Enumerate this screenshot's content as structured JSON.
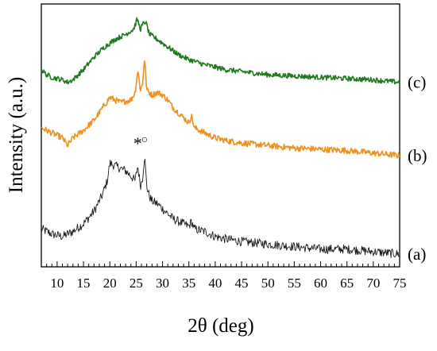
{
  "chart_data": {
    "type": "line",
    "title": "",
    "xlabel": "2θ (deg)",
    "ylabel": "Intensity (a.u.)",
    "xlim": [
      7,
      75
    ],
    "x_ticks": [
      10,
      15,
      20,
      25,
      30,
      35,
      40,
      45,
      50,
      55,
      60,
      65,
      70,
      75
    ],
    "y_ticks": [],
    "grid": false,
    "legend": "none",
    "series": [
      {
        "label": "(a)",
        "color": "#1a1a1a",
        "noise": 0.018,
        "x": [
          7,
          9,
          11,
          13,
          15,
          17,
          18.5,
          19.5,
          20,
          21,
          22,
          23,
          24,
          24.8,
          25.3,
          25.8,
          26.2,
          26.6,
          27,
          27.5,
          28,
          29,
          30,
          31,
          32,
          33,
          34,
          35,
          35.5,
          36,
          38,
          40,
          42,
          45,
          50,
          55,
          60,
          65,
          70,
          75
        ],
        "y": [
          0.23,
          0.21,
          0.2,
          0.22,
          0.25,
          0.3,
          0.36,
          0.42,
          0.49,
          0.48,
          0.47,
          0.46,
          0.44,
          0.42,
          0.48,
          0.4,
          0.43,
          0.52,
          0.4,
          0.36,
          0.34,
          0.33,
          0.31,
          0.29,
          0.27,
          0.26,
          0.25,
          0.24,
          0.26,
          0.23,
          0.22,
          0.2,
          0.19,
          0.18,
          0.17,
          0.16,
          0.15,
          0.15,
          0.14,
          0.13
        ]
      },
      {
        "label": "(b)",
        "color": "#f0901e",
        "noise": 0.012,
        "x": [
          7,
          9,
          11,
          12,
          13,
          15,
          17,
          19,
          20,
          22,
          24,
          24.8,
          25.3,
          25.8,
          26.2,
          26.6,
          27,
          28,
          29,
          30,
          31,
          32,
          33,
          34,
          35,
          35.5,
          36,
          38,
          40,
          42,
          45,
          50,
          55,
          60,
          65,
          70,
          75
        ],
        "y": [
          0.63,
          0.61,
          0.59,
          0.56,
          0.59,
          0.62,
          0.66,
          0.72,
          0.75,
          0.73,
          0.74,
          0.77,
          0.86,
          0.78,
          0.8,
          0.91,
          0.78,
          0.76,
          0.77,
          0.76,
          0.74,
          0.71,
          0.69,
          0.67,
          0.65,
          0.68,
          0.63,
          0.61,
          0.59,
          0.58,
          0.57,
          0.56,
          0.55,
          0.545,
          0.54,
          0.53,
          0.52
        ]
      },
      {
        "label": "(c)",
        "color": "#1f7a1f",
        "noise": 0.01,
        "x": [
          7,
          8,
          9,
          11,
          12,
          13,
          15,
          17,
          19,
          21,
          23,
          24.5,
          25.2,
          25.8,
          26.3,
          26.8,
          27.5,
          29,
          31,
          33,
          35,
          38,
          42,
          46,
          50,
          55,
          60,
          65,
          70,
          75
        ],
        "y": [
          0.86,
          0.84,
          0.83,
          0.82,
          0.81,
          0.82,
          0.86,
          0.91,
          0.95,
          0.98,
          1.0,
          1.02,
          1.06,
          1.02,
          1.04,
          1.05,
          1.0,
          0.98,
          0.95,
          0.92,
          0.9,
          0.88,
          0.86,
          0.85,
          0.84,
          0.835,
          0.83,
          0.825,
          0.82,
          0.81
        ]
      }
    ],
    "annotations": [
      {
        "text": "*",
        "x": 25.3,
        "y": 0.545
      },
      {
        "text": "○",
        "x": 26.6,
        "y": 0.57
      }
    ]
  }
}
